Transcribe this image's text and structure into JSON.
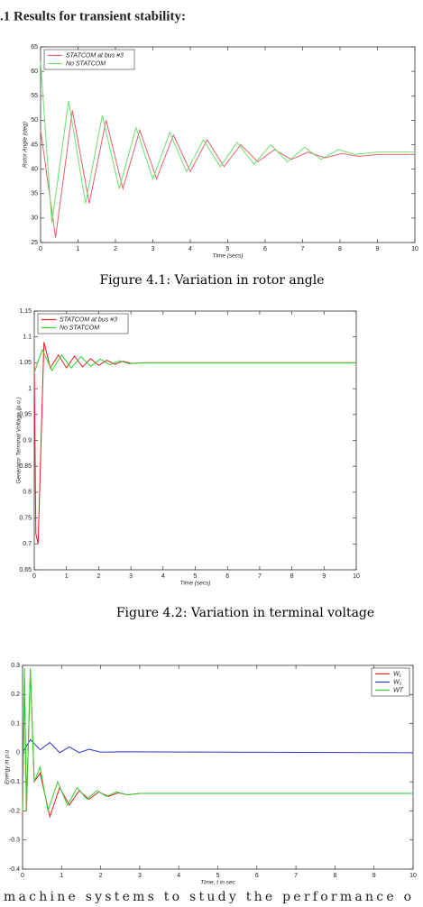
{
  "heading": ".1 Results for transient stability:",
  "chart_data": [
    {
      "type": "line",
      "xlabel": "Time (secs)",
      "ylabel": "Rotor Angle (deg)",
      "caption": "Figure 4.1: Variation in rotor angle",
      "xlim": [
        0,
        10
      ],
      "xticks": [
        0,
        1,
        2,
        3,
        4,
        5,
        6,
        7,
        8,
        9,
        10
      ],
      "ylim": [
        25,
        65
      ],
      "yticks": [
        25,
        30,
        35,
        40,
        45,
        50,
        55,
        60,
        65
      ],
      "legend": "upper left",
      "series": [
        {
          "name": "STATCOM at bus #3",
          "color": "#e0606e",
          "x": [
            0,
            0.4,
            0.85,
            1.3,
            1.75,
            2.2,
            2.65,
            3.1,
            3.55,
            4.0,
            4.45,
            4.9,
            5.35,
            5.8,
            6.25,
            6.7,
            7.15,
            7.6,
            8.05,
            8.5,
            9,
            10
          ],
          "values": [
            48,
            26,
            52,
            33,
            50,
            36,
            48,
            38,
            47,
            39.5,
            46,
            40.5,
            45,
            41.5,
            44,
            42,
            43.5,
            42.3,
            43.2,
            42.6,
            43,
            43
          ]
        },
        {
          "name": "No STATCOM",
          "color": "#6ee06e",
          "x": [
            0,
            0.3,
            0.75,
            1.2,
            1.65,
            2.1,
            2.55,
            3.0,
            3.45,
            3.9,
            4.35,
            4.8,
            5.25,
            5.7,
            6.15,
            6.6,
            7.05,
            7.5,
            7.95,
            8.4,
            9,
            10
          ],
          "values": [
            62,
            29,
            54,
            33,
            51,
            36,
            48.5,
            38,
            47.5,
            39.5,
            46,
            40.5,
            45.5,
            41,
            45,
            41.5,
            44.5,
            42,
            44,
            43,
            43.5,
            43.5
          ]
        }
      ]
    },
    {
      "type": "line",
      "xlabel": "Time (secs)",
      "ylabel": "Generator Terminal Voltage (p.u.)",
      "caption": "Figure 4.2: Variation in terminal voltage",
      "xlim": [
        0,
        10
      ],
      "xticks": [
        0,
        1,
        2,
        3,
        4,
        5,
        6,
        7,
        8,
        9,
        10
      ],
      "ylim": [
        0.65,
        1.15
      ],
      "yticks": [
        0.65,
        0.7,
        0.75,
        0.8,
        0.85,
        0.9,
        0.95,
        1,
        1.05,
        1.1,
        1.15
      ],
      "legend": "upper left",
      "series": [
        {
          "name": "STATCOM at bus #3",
          "color": "#e02020",
          "x": [
            0,
            0.05,
            0.12,
            0.3,
            0.5,
            0.75,
            1.0,
            1.25,
            1.5,
            1.75,
            2.0,
            2.25,
            2.5,
            2.75,
            3.0,
            3.5,
            10
          ],
          "values": [
            1.05,
            0.72,
            0.7,
            1.09,
            1.04,
            1.065,
            1.04,
            1.063,
            1.042,
            1.058,
            1.045,
            1.055,
            1.047,
            1.053,
            1.049,
            1.05,
            1.05
          ]
        },
        {
          "name": "No STATCOM",
          "color": "#30d030",
          "x": [
            0,
            0.1,
            0.25,
            0.55,
            0.85,
            1.15,
            1.45,
            1.75,
            2.05,
            2.35,
            2.65,
            2.95,
            3.3,
            10
          ],
          "values": [
            1.03,
            1.05,
            1.075,
            1.035,
            1.065,
            1.04,
            1.062,
            1.043,
            1.057,
            1.046,
            1.054,
            1.048,
            1.05,
            1.05
          ]
        }
      ]
    },
    {
      "type": "line",
      "xlabel": "Time, t in sec",
      "ylabel": "Energy in p.u",
      "xlim": [
        0,
        10
      ],
      "xticks": [
        0,
        1,
        2,
        3,
        4,
        5,
        6,
        7,
        8,
        9,
        10
      ],
      "ylim": [
        -0.4,
        0.3
      ],
      "yticks": [
        -0.4,
        -0.3,
        -0.2,
        -0.1,
        0,
        0.1,
        0.2,
        0.3
      ],
      "legend": "upper right",
      "series": [
        {
          "name": "W₁",
          "color": "#e02020",
          "x": [
            0,
            0.05,
            0.1,
            0.2,
            0.3,
            0.45,
            0.7,
            0.95,
            1.2,
            1.45,
            1.7,
            1.95,
            2.2,
            2.45,
            2.7,
            3.0,
            3.5,
            4,
            10
          ],
          "values": [
            -0.21,
            0.25,
            -0.2,
            0.28,
            -0.1,
            -0.07,
            -0.22,
            -0.12,
            -0.18,
            -0.13,
            -0.16,
            -0.135,
            -0.15,
            -0.138,
            -0.145,
            -0.14,
            -0.14,
            -0.14,
            -0.14
          ]
        },
        {
          "name": "W₂",
          "color": "#3030d0",
          "x": [
            0,
            0.2,
            0.45,
            0.7,
            0.95,
            1.2,
            1.45,
            1.7,
            2.0,
            2.5,
            10
          ],
          "values": [
            0,
            0.045,
            0.01,
            0.035,
            0,
            0.02,
            0,
            0.012,
            0.002,
            0.003,
            0
          ]
        },
        {
          "name": "WT",
          "color": "#30d030",
          "x": [
            0,
            0.05,
            0.1,
            0.2,
            0.3,
            0.45,
            0.65,
            0.9,
            1.15,
            1.4,
            1.65,
            1.9,
            2.15,
            2.4,
            2.7,
            3.0,
            3.5,
            10
          ],
          "values": [
            -0.2,
            0.29,
            -0.2,
            0.29,
            -0.1,
            -0.05,
            -0.2,
            -0.1,
            -0.18,
            -0.12,
            -0.16,
            -0.13,
            -0.15,
            -0.135,
            -0.145,
            -0.14,
            -0.14,
            -0.14
          ]
        }
      ]
    }
  ],
  "body_text": "machine systems to study the performance o"
}
